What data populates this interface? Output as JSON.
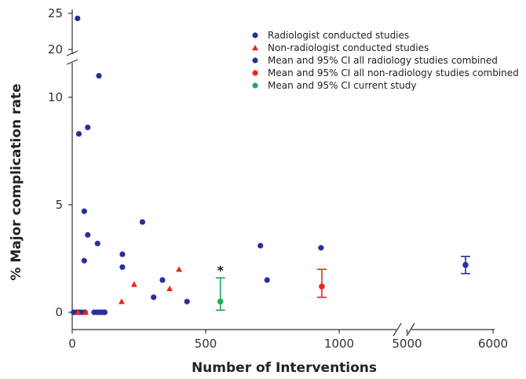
{
  "chart_data": {
    "type": "scatter",
    "xlabel": "Number of Interventions",
    "ylabel": "% Major complication rate",
    "x_ticks_left": [
      "0",
      "500",
      "1000"
    ],
    "x_ticks_right": [
      "5000",
      "6000"
    ],
    "y_ticks_low": [
      "0",
      "5",
      "10"
    ],
    "y_ticks_high": [
      "20",
      "25"
    ],
    "xlim_left": [
      0,
      1180
    ],
    "xlim_right": [
      4950,
      6000
    ],
    "ylim_low": [
      0,
      11.6
    ],
    "ylim_high": [
      20,
      25
    ],
    "colors": {
      "radiologist": "#2b2f9a",
      "non_radiologist": "#e8281e",
      "non_radiology_ci": "#e8281e",
      "current": "#1faa5a"
    },
    "legend": [
      {
        "label": "Radiologist conducted studies",
        "marker": "circle",
        "color": "#2b2f9a"
      },
      {
        "label": "Non-radiologist conducted studies",
        "marker": "triangle",
        "color": "#e8281e"
      },
      {
        "label": "Mean and 95% CI all radiology studies combined",
        "marker": "circle",
        "color": "#2b2f9a"
      },
      {
        "label": "Mean and 95% CI all non-radiology studies combined",
        "marker": "circle",
        "color": "#e8281e"
      },
      {
        "label": "Mean and 95% CI current study",
        "marker": "circle",
        "color": "#1faa5a"
      }
    ],
    "series": [
      {
        "name": "Radiologist conducted studies",
        "marker": "circle",
        "points": [
          {
            "x": 20,
            "y": 24.3
          },
          {
            "x": 25,
            "y": 8.3
          },
          {
            "x": 58,
            "y": 8.6
          },
          {
            "x": 100,
            "y": 11.0
          },
          {
            "x": 45,
            "y": 4.7
          },
          {
            "x": 58,
            "y": 3.6
          },
          {
            "x": 45,
            "y": 2.4
          },
          {
            "x": 95,
            "y": 3.2
          },
          {
            "x": 188,
            "y": 2.7
          },
          {
            "x": 188,
            "y": 2.1
          },
          {
            "x": 263,
            "y": 4.2
          },
          {
            "x": 338,
            "y": 1.5
          },
          {
            "x": 305,
            "y": 0.7
          },
          {
            "x": 430,
            "y": 0.5
          },
          {
            "x": 705,
            "y": 3.1
          },
          {
            "x": 730,
            "y": 1.5
          },
          {
            "x": 932,
            "y": 3.0
          },
          {
            "x": 5,
            "y": 0
          },
          {
            "x": 15,
            "y": 0
          },
          {
            "x": 25,
            "y": 0
          },
          {
            "x": 35,
            "y": 0
          },
          {
            "x": 48,
            "y": 0
          },
          {
            "x": 82,
            "y": 0
          },
          {
            "x": 92,
            "y": 0
          },
          {
            "x": 102,
            "y": 0
          },
          {
            "x": 112,
            "y": 0
          },
          {
            "x": 122,
            "y": 0
          }
        ]
      },
      {
        "name": "Non-radiologist conducted studies",
        "marker": "triangle",
        "points": [
          {
            "x": 185,
            "y": 0.5
          },
          {
            "x": 232,
            "y": 1.3
          },
          {
            "x": 365,
            "y": 1.1
          },
          {
            "x": 400,
            "y": 2.0
          },
          {
            "x": 22,
            "y": 0
          },
          {
            "x": 50,
            "y": 0
          }
        ]
      }
    ],
    "error_bars": [
      {
        "name": "Mean and 95% CI all radiology studies combined",
        "x": 5680,
        "mean": 2.2,
        "lower": 1.8,
        "upper": 2.6,
        "color": "#2b2f9a"
      },
      {
        "name": "Mean and 95% CI all non-radiology studies combined",
        "x": 935,
        "mean": 1.2,
        "lower": 0.7,
        "upper": 2.0,
        "color": "#e8281e"
      },
      {
        "name": "Mean and 95% CI current study",
        "x": 555,
        "mean": 0.5,
        "lower": 0.1,
        "upper": 1.6,
        "color": "#1faa5a"
      }
    ],
    "annotations": [
      {
        "text": "*",
        "x": 555,
        "y": 1.6
      }
    ]
  }
}
